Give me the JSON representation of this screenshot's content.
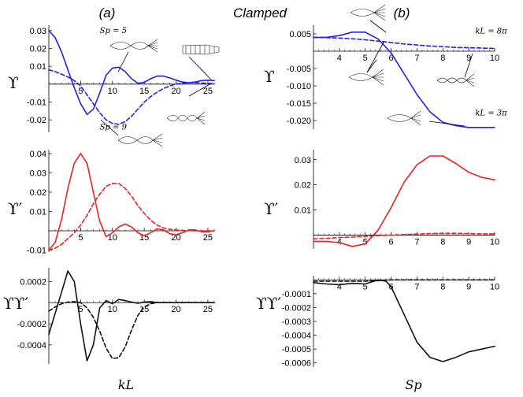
{
  "figure": {
    "panel_a_label": "(a)",
    "panel_b_label": "(b)",
    "center_title": "Clamped",
    "ylabel_1": "ϒ",
    "ylabel_2": "ϒ′",
    "ylabel_3": "ϒϒ′",
    "xlabel_a": "kL",
    "xlabel_b": "Sp"
  },
  "colors": {
    "blue": "#2222ee",
    "red": "#ee2222",
    "black": "#111111"
  },
  "chart_data": [
    {
      "id": "a1",
      "type": "line",
      "xlim": [
        0,
        26
      ],
      "ylim": [
        -0.027,
        0.033
      ],
      "xticks": [
        {
          "v": 5,
          "t": "5"
        },
        {
          "v": 10,
          "t": "10"
        },
        {
          "v": 15,
          "t": "15"
        },
        {
          "v": 20,
          "t": "20"
        },
        {
          "v": 25,
          "t": "25"
        }
      ],
      "yticks": [
        {
          "v": 0.03,
          "t": "0.03"
        },
        {
          "v": 0.02,
          "t": "0.02"
        },
        {
          "v": 0.01,
          "t": "0.01"
        },
        {
          "v": -0.01,
          "t": "-0.01"
        },
        {
          "v": -0.02,
          "t": "-0.02"
        }
      ],
      "annotations": [
        {
          "text": "Sp = 5",
          "x": 8,
          "y": 0.0285
        },
        {
          "text": "Sp = 9",
          "x": 8,
          "y": -0.0255
        }
      ],
      "series": [
        {
          "name": "Sp = 5",
          "color": "blue",
          "dash": false,
          "x": [
            0,
            1,
            2,
            3,
            4,
            5,
            6,
            7,
            8,
            9,
            10,
            11,
            12,
            13,
            14,
            15,
            16,
            17,
            18,
            19,
            20,
            21,
            22,
            23,
            24,
            25,
            26
          ],
          "y": [
            0.03,
            0.026,
            0.018,
            0.008,
            -0.002,
            -0.011,
            -0.017,
            -0.014,
            -0.005,
            0.005,
            0.009,
            0.0095,
            0.007,
            0.003,
            0.0005,
            0.001,
            0.003,
            0.0045,
            0.0045,
            0.0035,
            0.0022,
            0.0012,
            0.0008,
            0.0012,
            0.002,
            0.0022,
            0.002
          ]
        },
        {
          "name": "Sp = 9",
          "color": "blue",
          "dash": true,
          "x": [
            0,
            1,
            2,
            3,
            4,
            5,
            6,
            7,
            8,
            9,
            10,
            11,
            12,
            13,
            14,
            15,
            16,
            17,
            18,
            19,
            20,
            21,
            22,
            23,
            24,
            25,
            26
          ],
          "y": [
            0.008,
            0.007,
            0.0055,
            0.004,
            0.002,
            -0.001,
            -0.006,
            -0.011,
            -0.016,
            -0.02,
            -0.022,
            -0.0225,
            -0.021,
            -0.018,
            -0.014,
            -0.01,
            -0.007,
            -0.0045,
            -0.0025,
            -0.001,
            0.0,
            0.0005,
            0.0008,
            0.0008,
            0.0006,
            0.0004,
            0.0003
          ]
        }
      ]
    },
    {
      "id": "a2",
      "type": "line",
      "xlim": [
        0,
        26
      ],
      "ylim": [
        -0.011,
        0.042
      ],
      "xticks": [
        {
          "v": 5,
          "t": "5"
        },
        {
          "v": 10,
          "t": "10"
        },
        {
          "v": 15,
          "t": "15"
        },
        {
          "v": 20,
          "t": "20"
        },
        {
          "v": 25,
          "t": "25"
        }
      ],
      "yticks": [
        {
          "v": 0.04,
          "t": "0.04"
        },
        {
          "v": 0.03,
          "t": "0.03"
        },
        {
          "v": 0.02,
          "t": "0.02"
        },
        {
          "v": 0.01,
          "t": "0.01"
        },
        {
          "v": -0.01,
          "t": "-0.01"
        }
      ],
      "series": [
        {
          "name": "Sp = 5",
          "color": "red",
          "dash": false,
          "x": [
            0,
            1,
            2,
            3,
            4,
            5,
            6,
            7,
            8,
            9,
            10,
            11,
            12,
            13,
            14,
            15,
            16,
            17,
            18,
            19,
            20,
            21,
            22,
            23,
            24,
            25,
            26
          ],
          "y": [
            -0.01,
            -0.006,
            0.006,
            0.022,
            0.035,
            0.04,
            0.035,
            0.02,
            0.005,
            -0.003,
            -0.001,
            0.002,
            0.0035,
            0.002,
            -0.001,
            -0.0025,
            -0.001,
            0.001,
            0.0005,
            -0.0015,
            -0.002,
            -0.001,
            0.0005,
            0.0005,
            -0.0005,
            -0.0005,
            0.0
          ]
        },
        {
          "name": "Sp = 9",
          "color": "red",
          "dash": true,
          "x": [
            0,
            1,
            2,
            3,
            4,
            5,
            6,
            7,
            8,
            9,
            10,
            11,
            12,
            13,
            14,
            15,
            16,
            17,
            18,
            19,
            20,
            21,
            22,
            23,
            24,
            25,
            26
          ],
          "y": [
            -0.01,
            -0.009,
            -0.007,
            -0.004,
            -0.001,
            0.003,
            0.008,
            0.014,
            0.019,
            0.023,
            0.0245,
            0.0245,
            0.022,
            0.018,
            0.013,
            0.009,
            0.0055,
            0.003,
            0.0015,
            0.0008,
            0.0004,
            0.0002,
            0.0001,
            0.0,
            0.0,
            0.0,
            0.0
          ]
        }
      ]
    },
    {
      "id": "a3",
      "type": "line",
      "xlim": [
        0,
        26
      ],
      "ylim": [
        -0.00058,
        0.00033
      ],
      "xticks": [
        {
          "v": 5,
          "t": "5"
        },
        {
          "v": 10,
          "t": "10"
        },
        {
          "v": 15,
          "t": "15"
        },
        {
          "v": 20,
          "t": "20"
        },
        {
          "v": 25,
          "t": "25"
        }
      ],
      "yticks": [
        {
          "v": 0.0002,
          "t": "0.0002"
        },
        {
          "v": -0.0002,
          "t": "-0.0002"
        },
        {
          "v": -0.0004,
          "t": "-0.0004"
        }
      ],
      "series": [
        {
          "name": "Sp = 5",
          "color": "black",
          "dash": false,
          "x": [
            0,
            1,
            2,
            3,
            4,
            5,
            6,
            7,
            8,
            9,
            10,
            11,
            12,
            13,
            14,
            15,
            16,
            17,
            18,
            19,
            20,
            21,
            22,
            23,
            24,
            25,
            26
          ],
          "y": [
            -0.0003,
            -0.0001,
            0.0001,
            0.0003,
            0.0002,
            -0.0002,
            -0.00055,
            -0.0004,
            -5e-05,
            2e-05,
            -1e-05,
            3e-05,
            2e-05,
            5e-06,
            -5e-06,
            5e-06,
            1e-05,
            0.0,
            0.0,
            0.0,
            0.0,
            0.0,
            0.0,
            0.0,
            0.0,
            0.0,
            0.0
          ]
        },
        {
          "name": "Sp = 9",
          "color": "black",
          "dash": true,
          "x": [
            0,
            1,
            2,
            3,
            4,
            5,
            6,
            7,
            8,
            9,
            10,
            11,
            12,
            13,
            14,
            15,
            16,
            17,
            18,
            19,
            20,
            21,
            22,
            23,
            24,
            25,
            26
          ],
          "y": [
            -8e-05,
            -4e-05,
            -1e-05,
            5e-06,
            1e-05,
            0.0,
            -5e-05,
            -0.00014,
            -0.00027,
            -0.00043,
            -0.00053,
            -0.00052,
            -0.00042,
            -0.00026,
            -0.00012,
            -4e-05,
            -1e-05,
            0.0,
            0.0,
            0.0,
            0.0,
            0.0,
            0.0,
            0.0,
            0.0,
            0.0,
            0.0
          ]
        }
      ]
    },
    {
      "id": "b1",
      "type": "line",
      "xlim": [
        3,
        10
      ],
      "ylim": [
        -0.0225,
        0.0075
      ],
      "xticks": [
        {
          "v": 4,
          "t": "4"
        },
        {
          "v": 5,
          "t": "5"
        },
        {
          "v": 6,
          "t": "6"
        },
        {
          "v": 7,
          "t": "7"
        },
        {
          "v": 8,
          "t": "8"
        },
        {
          "v": 9,
          "t": "9"
        },
        {
          "v": 10,
          "t": "10"
        }
      ],
      "yticks": [
        {
          "v": 0.005,
          "t": "0.005"
        },
        {
          "v": -0.005,
          "t": "-0.005"
        },
        {
          "v": -0.01,
          "t": "-0.010"
        },
        {
          "v": -0.015,
          "t": "-0.015"
        },
        {
          "v": -0.02,
          "t": "-0.020"
        }
      ],
      "annotations": [
        {
          "text": "kL = 8π",
          "x": 9.25,
          "y": 0.0051
        },
        {
          "text": "kL = 3π",
          "x": 9.25,
          "y": -0.0185
        }
      ],
      "series": [
        {
          "name": "kL = 3π",
          "color": "blue",
          "dash": false,
          "x": [
            3,
            3.5,
            4,
            4.5,
            5,
            5.5,
            6,
            6.5,
            7,
            7.5,
            8,
            8.5,
            9,
            9.5,
            10
          ],
          "y": [
            0.004,
            0.004,
            0.0045,
            0.0055,
            0.0055,
            0.0035,
            -0.0005,
            -0.0065,
            -0.0125,
            -0.0175,
            -0.0205,
            -0.0215,
            -0.022,
            -0.022,
            -0.022
          ]
        },
        {
          "name": "kL = 8π",
          "color": "blue",
          "dash": true,
          "x": [
            3,
            3.5,
            4,
            4.5,
            5,
            5.5,
            6,
            6.5,
            7,
            7.5,
            8,
            8.5,
            9,
            9.5,
            10
          ],
          "y": [
            0.004,
            0.0039,
            0.0038,
            0.0036,
            0.0033,
            0.0029,
            0.0025,
            0.0021,
            0.0018,
            0.0015,
            0.0013,
            0.0011,
            0.001,
            0.0009,
            0.0008
          ]
        }
      ]
    },
    {
      "id": "b2",
      "type": "line",
      "xlim": [
        3,
        10
      ],
      "ylim": [
        -0.0055,
        0.034
      ],
      "xticks": [
        {
          "v": 4,
          "t": "4"
        },
        {
          "v": 5,
          "t": "5"
        },
        {
          "v": 6,
          "t": "6"
        },
        {
          "v": 7,
          "t": "7"
        },
        {
          "v": 8,
          "t": "8"
        },
        {
          "v": 9,
          "t": "9"
        },
        {
          "v": 10,
          "t": "10"
        }
      ],
      "yticks": [
        {
          "v": 0.03,
          "t": "0.03"
        },
        {
          "v": 0.02,
          "t": "0.02"
        },
        {
          "v": 0.01,
          "t": "0.01"
        }
      ],
      "series": [
        {
          "name": "kL = 3π",
          "color": "red",
          "dash": false,
          "x": [
            3,
            3.5,
            4,
            4.5,
            5,
            5.5,
            6,
            6.5,
            7,
            7.5,
            8,
            8.5,
            9,
            9.5,
            10
          ],
          "y": [
            -0.0025,
            -0.0025,
            -0.003,
            -0.0045,
            -0.0035,
            0.002,
            0.011,
            0.021,
            0.028,
            0.0315,
            0.0315,
            0.0285,
            0.025,
            0.023,
            0.022
          ]
        },
        {
          "name": "kL = 8π",
          "color": "red",
          "dash": true,
          "x": [
            3,
            3.5,
            4,
            4.5,
            5,
            5.5,
            6,
            6.5,
            7,
            7.5,
            8,
            8.5,
            9,
            9.5,
            10
          ],
          "y": [
            -0.0015,
            -0.0013,
            -0.001,
            -0.0008,
            -0.0005,
            -0.0002,
            0.0,
            0.0002,
            0.0004,
            0.0006,
            0.0007,
            0.0007,
            0.0006,
            0.0005,
            0.0005
          ]
        }
      ]
    },
    {
      "id": "b3",
      "type": "line",
      "xlim": [
        3,
        10
      ],
      "ylim": [
        -0.00063,
        3e-05
      ],
      "xticks": [
        {
          "v": 4,
          "t": "4"
        },
        {
          "v": 5,
          "t": "5"
        },
        {
          "v": 6,
          "t": "6"
        },
        {
          "v": 7,
          "t": "7"
        },
        {
          "v": 8,
          "t": "8"
        },
        {
          "v": 9,
          "t": "9"
        },
        {
          "v": 10,
          "t": "10"
        }
      ],
      "yticks": [
        {
          "v": -0.0001,
          "t": "-0.0001"
        },
        {
          "v": -0.0002,
          "t": "-0.0002"
        },
        {
          "v": -0.0003,
          "t": "-0.0003"
        },
        {
          "v": -0.0004,
          "t": "-0.0004"
        },
        {
          "v": -0.0005,
          "t": "-0.0005"
        },
        {
          "v": -0.0006,
          "t": "-0.0006"
        }
      ],
      "series": [
        {
          "name": "kL = 3π",
          "color": "black",
          "dash": false,
          "x": [
            3,
            3.5,
            4,
            4.5,
            5,
            5.5,
            5.8,
            6,
            6.5,
            7,
            7.5,
            8,
            8.5,
            9,
            9.5,
            10
          ],
          "y": [
            -2e-05,
            -3e-05,
            -3.5e-05,
            -2.5e-05,
            -3e-05,
            0.0,
            -1e-05,
            -5e-05,
            -0.00025,
            -0.00045,
            -0.00056,
            -0.00059,
            -0.00056,
            -0.00052,
            -0.0005,
            -0.00048
          ]
        },
        {
          "name": "kL = 8π",
          "color": "black",
          "dash": true,
          "x": [
            3,
            3.5,
            4,
            4.5,
            5,
            5.5,
            6,
            6.5,
            7,
            7.5,
            8,
            8.5,
            9,
            9.5,
            10
          ],
          "y": [
            -1e-05,
            -1e-05,
            -1e-05,
            -1e-05,
            -1e-05,
            -5e-06,
            0.0,
            0.0,
            0.0,
            0.0,
            0.0,
            0.0,
            0.0,
            0.0,
            0.0
          ]
        }
      ]
    }
  ]
}
